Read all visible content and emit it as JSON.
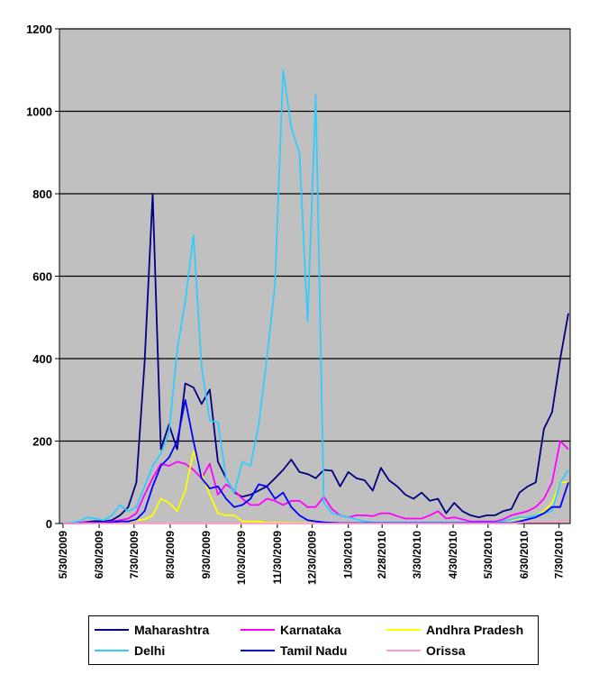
{
  "chart_data": {
    "type": "line",
    "title": "",
    "xlabel": "",
    "ylabel": "",
    "ylim": [
      0,
      1200
    ],
    "y_ticks": [
      0,
      200,
      400,
      600,
      800,
      1000,
      1200
    ],
    "x_tick_labels": [
      "5/30/2009",
      "6/30/2009",
      "7/30/2009",
      "8/30/2009",
      "9/30/2009",
      "10/30/2009",
      "11/30/2009",
      "12/30/2009",
      "1/30/2010",
      "2/28/2010",
      "3/30/2010",
      "4/30/2010",
      "5/30/2010",
      "6/30/2010",
      "7/30/2010"
    ],
    "x_start": "5/30/2009",
    "x_interval_days": 7,
    "plot_background": "#C0C0C0",
    "gridlines": "horizontal",
    "legend_position": "bottom",
    "series": [
      {
        "name": "Maharashtra",
        "color": "#000080",
        "values": [
          0,
          0,
          2,
          4,
          6,
          5,
          8,
          20,
          40,
          100,
          390,
          800,
          180,
          240,
          180,
          340,
          330,
          290,
          325,
          150,
          110,
          75,
          65,
          70,
          80,
          90,
          110,
          130,
          155,
          125,
          120,
          110,
          130,
          128,
          90,
          125,
          110,
          105,
          80,
          135,
          105,
          90,
          70,
          60,
          75,
          55,
          60,
          25,
          50,
          30,
          20,
          15,
          20,
          20,
          30,
          35,
          75,
          90,
          100,
          230,
          270,
          400,
          510
        ]
      },
      {
        "name": "Karnataka",
        "color": "#FF00FF",
        "values": [
          0,
          0,
          2,
          3,
          2,
          3,
          5,
          8,
          12,
          25,
          70,
          110,
          145,
          140,
          150,
          145,
          130,
          110,
          145,
          70,
          95,
          80,
          60,
          45,
          45,
          60,
          55,
          45,
          55,
          55,
          40,
          40,
          65,
          35,
          20,
          15,
          20,
          20,
          18,
          25,
          25,
          18,
          12,
          12,
          12,
          20,
          30,
          12,
          15,
          10,
          5,
          5,
          5,
          5,
          10,
          20,
          25,
          30,
          40,
          60,
          100,
          200,
          180
        ]
      },
      {
        "name": "Andhra Pradesh",
        "color": "#FFFF00",
        "values": [
          0,
          0,
          0,
          1,
          1,
          2,
          2,
          3,
          5,
          8,
          10,
          20,
          60,
          50,
          30,
          80,
          175,
          120,
          70,
          25,
          20,
          20,
          5,
          5,
          5,
          2,
          2,
          2,
          1,
          1,
          1,
          1,
          1,
          1,
          1,
          1,
          1,
          1,
          1,
          1,
          1,
          1,
          1,
          1,
          1,
          1,
          1,
          1,
          1,
          1,
          1,
          1,
          1,
          1,
          5,
          8,
          12,
          15,
          20,
          30,
          50,
          100,
          100
        ]
      },
      {
        "name": "Delhi",
        "color": "#33CCFF",
        "values": [
          0,
          2,
          6,
          15,
          12,
          8,
          20,
          45,
          30,
          40,
          90,
          140,
          170,
          220,
          420,
          540,
          700,
          380,
          250,
          245,
          110,
          75,
          150,
          140,
          240,
          400,
          580,
          1100,
          960,
          900,
          490,
          1040,
          50,
          25,
          20,
          15,
          10,
          5,
          3,
          2,
          2,
          2,
          2,
          2,
          2,
          2,
          2,
          2,
          2,
          2,
          2,
          2,
          2,
          2,
          5,
          10,
          15,
          15,
          20,
          25,
          30,
          100,
          130
        ]
      },
      {
        "name": "Tamil Nadu",
        "color": "#0000FF",
        "values": [
          0,
          0,
          0,
          1,
          1,
          2,
          3,
          5,
          5,
          10,
          30,
          90,
          140,
          160,
          200,
          300,
          200,
          110,
          85,
          90,
          60,
          40,
          45,
          60,
          95,
          90,
          60,
          75,
          40,
          20,
          8,
          5,
          3,
          2,
          1,
          1,
          1,
          1,
          1,
          1,
          1,
          1,
          1,
          1,
          1,
          1,
          1,
          1,
          1,
          1,
          1,
          1,
          1,
          1,
          1,
          1,
          5,
          10,
          15,
          25,
          40,
          40,
          100
        ]
      },
      {
        "name": "Orissa",
        "color": "#FF99CC",
        "values": [
          0,
          0,
          0,
          0,
          0,
          0,
          0,
          0,
          0,
          0,
          0,
          0,
          0,
          0,
          0,
          0,
          0,
          0,
          0,
          0,
          0,
          0,
          0,
          0,
          0,
          0,
          0,
          0,
          0,
          0,
          0,
          0,
          0,
          0,
          0,
          0,
          0,
          0,
          0,
          0,
          0,
          0,
          0,
          0,
          0,
          0,
          0,
          0,
          0,
          0,
          0,
          0,
          0,
          0,
          0,
          0,
          2,
          3,
          3,
          3,
          3,
          5,
          10
        ]
      }
    ]
  }
}
